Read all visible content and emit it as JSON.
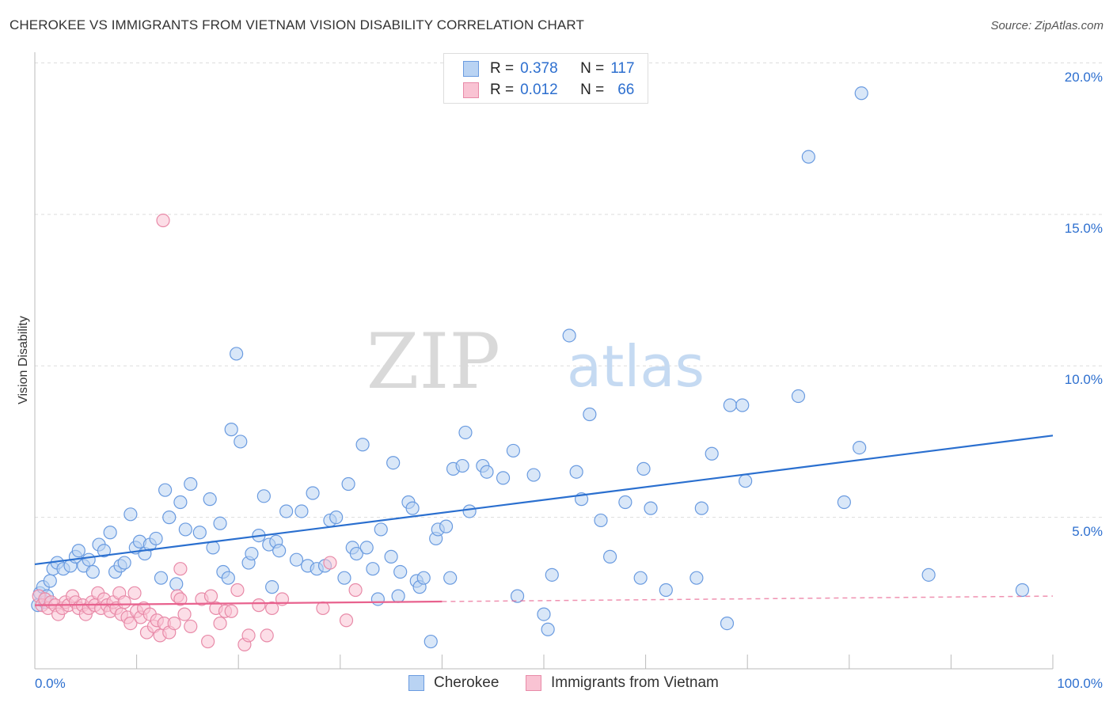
{
  "title": "CHEROKEE VS IMMIGRANTS FROM VIETNAM VISION DISABILITY CORRELATION CHART",
  "source": "Source: ZipAtlas.com",
  "watermark": {
    "zip": "ZIP",
    "atlas": "atlas"
  },
  "legend": {
    "r_label": "R =",
    "n_label": "N =",
    "rows": [
      {
        "r": "0.378",
        "n": "117",
        "fill": "#b9d3f3",
        "stroke": "#6a9be0"
      },
      {
        "r": "0.012",
        "n": "66",
        "fill": "#f9c3d3",
        "stroke": "#e88aa8"
      }
    ]
  },
  "chart_data": {
    "type": "scatter",
    "title": "CHEROKEE VS IMMIGRANTS FROM VIETNAM VISION DISABILITY CORRELATION CHART",
    "xlabel": "",
    "ylabel": "Vision Disability",
    "xlim": [
      0,
      100
    ],
    "ylim": [
      0,
      20.7
    ],
    "x_tick_labels": [
      "0.0%",
      "100.0%"
    ],
    "y_ticks": [
      5,
      10,
      15,
      20
    ],
    "y_tick_labels": [
      "5.0%",
      "10.0%",
      "15.0%",
      "20.0%"
    ],
    "grid": true,
    "legend_position": "top-center",
    "series": [
      {
        "name": "Cherokee",
        "color": "#6a9be0",
        "fill": "#b9d3f3",
        "trend": {
          "x": [
            0,
            100
          ],
          "y": [
            3.45,
            7.7
          ],
          "style": "solid",
          "color": "#2a6fcf"
        },
        "points": [
          [
            0.3,
            2.1
          ],
          [
            0.5,
            2.5
          ],
          [
            0.8,
            2.7
          ],
          [
            1.0,
            2.2
          ],
          [
            1.2,
            2.4
          ],
          [
            1.5,
            2.9
          ],
          [
            1.8,
            3.3
          ],
          [
            2.2,
            3.5
          ],
          [
            2.8,
            3.3
          ],
          [
            3.5,
            3.4
          ],
          [
            4.0,
            3.7
          ],
          [
            4.3,
            3.9
          ],
          [
            4.8,
            3.4
          ],
          [
            5.3,
            3.6
          ],
          [
            5.7,
            3.2
          ],
          [
            6.3,
            4.1
          ],
          [
            6.8,
            3.9
          ],
          [
            7.4,
            4.5
          ],
          [
            7.9,
            3.2
          ],
          [
            8.4,
            3.4
          ],
          [
            8.8,
            3.5
          ],
          [
            9.4,
            5.1
          ],
          [
            9.9,
            4.0
          ],
          [
            10.3,
            4.2
          ],
          [
            10.8,
            3.8
          ],
          [
            11.3,
            4.1
          ],
          [
            11.9,
            4.3
          ],
          [
            12.4,
            3.0
          ],
          [
            12.8,
            5.9
          ],
          [
            13.2,
            5.0
          ],
          [
            13.9,
            2.8
          ],
          [
            14.3,
            5.5
          ],
          [
            14.8,
            4.6
          ],
          [
            15.3,
            6.1
          ],
          [
            16.2,
            4.5
          ],
          [
            17.2,
            5.6
          ],
          [
            17.5,
            4.0
          ],
          [
            18.2,
            4.8
          ],
          [
            18.5,
            3.2
          ],
          [
            19.0,
            3.0
          ],
          [
            19.3,
            7.9
          ],
          [
            19.8,
            10.4
          ],
          [
            20.2,
            7.5
          ],
          [
            21.0,
            3.5
          ],
          [
            21.3,
            3.8
          ],
          [
            22.0,
            4.4
          ],
          [
            22.5,
            5.7
          ],
          [
            23.0,
            4.1
          ],
          [
            23.3,
            2.7
          ],
          [
            23.7,
            4.2
          ],
          [
            24.0,
            3.9
          ],
          [
            24.7,
            5.2
          ],
          [
            25.7,
            3.6
          ],
          [
            26.2,
            5.2
          ],
          [
            26.8,
            3.4
          ],
          [
            27.3,
            5.8
          ],
          [
            27.7,
            3.3
          ],
          [
            28.5,
            3.4
          ],
          [
            29.0,
            4.9
          ],
          [
            29.6,
            5.0
          ],
          [
            30.4,
            3.0
          ],
          [
            30.8,
            6.1
          ],
          [
            31.2,
            4.0
          ],
          [
            31.6,
            3.8
          ],
          [
            32.2,
            7.4
          ],
          [
            32.6,
            4.0
          ],
          [
            33.2,
            3.3
          ],
          [
            33.7,
            2.3
          ],
          [
            34.0,
            4.6
          ],
          [
            35.0,
            3.7
          ],
          [
            35.2,
            6.8
          ],
          [
            35.9,
            3.2
          ],
          [
            35.7,
            2.4
          ],
          [
            36.7,
            5.5
          ],
          [
            37.1,
            5.3
          ],
          [
            37.5,
            2.9
          ],
          [
            37.8,
            2.7
          ],
          [
            38.2,
            3.0
          ],
          [
            38.9,
            0.9
          ],
          [
            39.4,
            4.3
          ],
          [
            39.6,
            4.6
          ],
          [
            40.4,
            4.7
          ],
          [
            40.8,
            3.0
          ],
          [
            41.1,
            6.6
          ],
          [
            42.0,
            6.7
          ],
          [
            42.3,
            7.8
          ],
          [
            42.7,
            5.2
          ],
          [
            44.0,
            6.7
          ],
          [
            44.4,
            6.5
          ],
          [
            46.0,
            6.3
          ],
          [
            47.0,
            7.2
          ],
          [
            47.4,
            2.4
          ],
          [
            49.0,
            6.4
          ],
          [
            50.0,
            1.8
          ],
          [
            50.4,
            1.3
          ],
          [
            50.8,
            3.1
          ],
          [
            52.5,
            11.0
          ],
          [
            53.2,
            6.5
          ],
          [
            53.7,
            5.6
          ],
          [
            54.5,
            8.4
          ],
          [
            55.6,
            4.9
          ],
          [
            56.5,
            3.7
          ],
          [
            58.0,
            5.5
          ],
          [
            59.5,
            3.0
          ],
          [
            59.8,
            6.6
          ],
          [
            60.5,
            5.3
          ],
          [
            62.0,
            2.6
          ],
          [
            65.0,
            3.0
          ],
          [
            65.5,
            5.3
          ],
          [
            66.5,
            7.1
          ],
          [
            68.0,
            1.5
          ],
          [
            68.3,
            8.7
          ],
          [
            69.5,
            8.7
          ],
          [
            69.8,
            6.2
          ],
          [
            75.0,
            9.0
          ],
          [
            76.0,
            16.9
          ],
          [
            79.5,
            5.5
          ],
          [
            81.0,
            7.3
          ],
          [
            81.2,
            19.0
          ],
          [
            87.8,
            3.1
          ],
          [
            97.0,
            2.6
          ]
        ]
      },
      {
        "name": "Immigrants from Vietnam",
        "color": "#e88aa8",
        "fill": "#f9c3d3",
        "trend": {
          "x": [
            0,
            40
          ],
          "y": [
            2.1,
            2.22
          ],
          "style": "solid",
          "color": "#e8628e",
          "extension": {
            "x": [
              40,
              100
            ],
            "y": [
              2.22,
              2.4
            ],
            "style": "dashed"
          }
        },
        "points": [
          [
            0.4,
            2.4
          ],
          [
            0.7,
            2.1
          ],
          [
            1.0,
            2.3
          ],
          [
            1.3,
            2.0
          ],
          [
            1.6,
            2.2
          ],
          [
            2.0,
            2.1
          ],
          [
            2.3,
            1.8
          ],
          [
            2.7,
            2.0
          ],
          [
            3.0,
            2.2
          ],
          [
            3.3,
            2.1
          ],
          [
            3.7,
            2.4
          ],
          [
            4.0,
            2.2
          ],
          [
            4.3,
            2.0
          ],
          [
            4.7,
            2.1
          ],
          [
            5.0,
            1.8
          ],
          [
            5.3,
            2.0
          ],
          [
            5.6,
            2.2
          ],
          [
            5.9,
            2.1
          ],
          [
            6.2,
            2.5
          ],
          [
            6.5,
            2.0
          ],
          [
            6.8,
            2.3
          ],
          [
            7.1,
            2.1
          ],
          [
            7.4,
            1.9
          ],
          [
            7.7,
            2.2
          ],
          [
            8.0,
            2.0
          ],
          [
            8.3,
            2.5
          ],
          [
            8.5,
            1.8
          ],
          [
            8.8,
            2.2
          ],
          [
            9.1,
            1.7
          ],
          [
            9.4,
            1.5
          ],
          [
            9.8,
            2.5
          ],
          [
            10.0,
            1.9
          ],
          [
            10.4,
            1.7
          ],
          [
            10.7,
            2.0
          ],
          [
            11.0,
            1.2
          ],
          [
            11.3,
            1.8
          ],
          [
            11.7,
            1.4
          ],
          [
            12.0,
            1.6
          ],
          [
            12.3,
            1.1
          ],
          [
            12.7,
            1.5
          ],
          [
            13.2,
            1.2
          ],
          [
            13.7,
            1.5
          ],
          [
            14.0,
            2.4
          ],
          [
            14.3,
            2.3
          ],
          [
            14.3,
            3.3
          ],
          [
            14.7,
            1.8
          ],
          [
            15.3,
            1.4
          ],
          [
            12.6,
            14.8
          ],
          [
            16.4,
            2.3
          ],
          [
            17.0,
            0.9
          ],
          [
            17.3,
            2.4
          ],
          [
            17.8,
            2.0
          ],
          [
            18.2,
            1.5
          ],
          [
            18.7,
            1.9
          ],
          [
            19.3,
            1.9
          ],
          [
            19.9,
            2.6
          ],
          [
            20.6,
            0.8
          ],
          [
            21.0,
            1.1
          ],
          [
            22.0,
            2.1
          ],
          [
            22.8,
            1.1
          ],
          [
            23.3,
            2.0
          ],
          [
            24.3,
            2.3
          ],
          [
            28.3,
            2.0
          ],
          [
            29.0,
            3.5
          ],
          [
            30.6,
            1.6
          ],
          [
            31.5,
            2.6
          ]
        ]
      }
    ]
  }
}
